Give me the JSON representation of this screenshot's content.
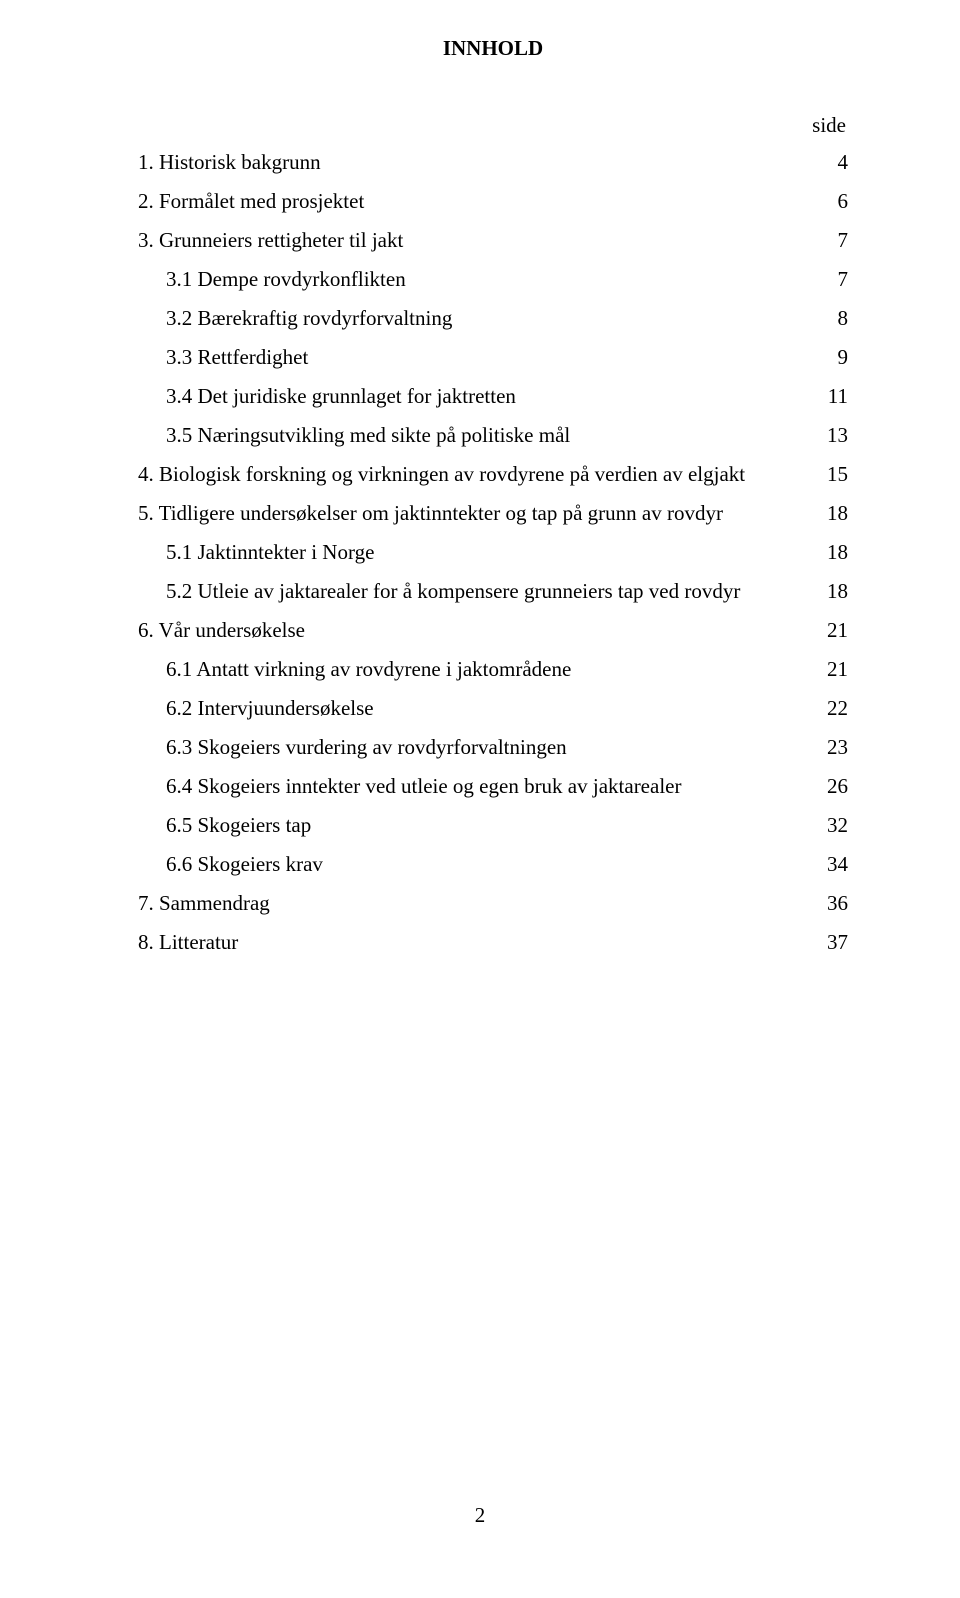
{
  "title": "INNHOLD",
  "side_label": "side",
  "footer_page_number": "2",
  "toc": [
    {
      "label": "1. Historisk bakgrunn",
      "page": "4",
      "indent": 0
    },
    {
      "label": "2. Formålet med prosjektet",
      "page": "6",
      "indent": 0
    },
    {
      "label": "3. Grunneiers rettigheter til jakt",
      "page": "7",
      "indent": 0
    },
    {
      "label": "3.1 Dempe rovdyrkonflikten",
      "page": "7",
      "indent": 1
    },
    {
      "label": "3.2 Bærekraftig rovdyrforvaltning",
      "page": "8",
      "indent": 1
    },
    {
      "label": "3.3 Rettferdighet",
      "page": "9",
      "indent": 1
    },
    {
      "label": "3.4 Det juridiske grunnlaget for jaktretten",
      "page": "11",
      "indent": 1
    },
    {
      "label": "3.5 Næringsutvikling med sikte på politiske mål",
      "page": "13",
      "indent": 1
    },
    {
      "label": "4. Biologisk forskning og virkningen av rovdyrene på verdien av elgjakt",
      "page": "15",
      "indent": 0
    },
    {
      "label": "5. Tidligere undersøkelser om jaktinntekter og tap på grunn av rovdyr",
      "page": "18",
      "indent": 0
    },
    {
      "label": "5.1 Jaktinntekter i Norge",
      "page": "18",
      "indent": 1
    },
    {
      "label": "5.2 Utleie av jaktarealer for å kompensere grunneiers tap ved rovdyr",
      "page": "18",
      "indent": 1
    },
    {
      "label": "6. Vår undersøkelse",
      "page": "21",
      "indent": 0
    },
    {
      "label": "6.1 Antatt virkning av rovdyrene i jaktområdene",
      "page": "21",
      "indent": 1
    },
    {
      "label": "6.2 Intervjuundersøkelse",
      "page": "22",
      "indent": 1
    },
    {
      "label": "6.3 Skogeiers vurdering av rovdyrforvaltningen",
      "page": "23",
      "indent": 1
    },
    {
      "label": "6.4 Skogeiers inntekter ved utleie og egen bruk av jaktarealer",
      "page": "26",
      "indent": 1
    },
    {
      "label": "6.5 Skogeiers tap",
      "page": "32",
      "indent": 1
    },
    {
      "label": "6.6 Skogeiers krav",
      "page": "34",
      "indent": 1
    },
    {
      "label": "7. Sammendrag",
      "page": "36",
      "indent": 0
    },
    {
      "label": "8. Litteratur",
      "page": "37",
      "indent": 0
    }
  ]
}
